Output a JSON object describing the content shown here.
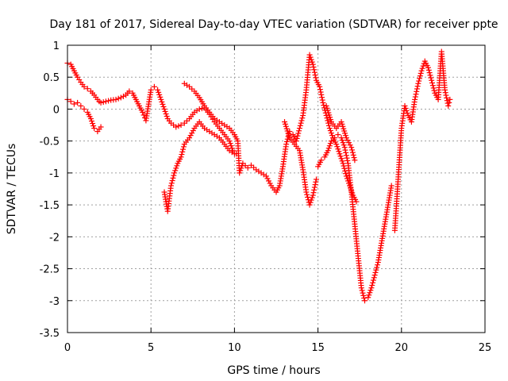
{
  "chart_data": {
    "type": "scatter",
    "title": "Day 181 of 2017, Sidereal Day-to-day VTEC variation (SDTVAR) for receiver ppte",
    "xlabel": "GPS time / hours",
    "ylabel": "SDTVAR / TECUs",
    "xlim": [
      0,
      25
    ],
    "ylim": [
      -3.5,
      1
    ],
    "xticks": [
      "0",
      "5",
      "10",
      "15",
      "20",
      "25"
    ],
    "yticks": [
      "-3.5",
      "-3",
      "-2.5",
      "-2",
      "-1.5",
      "-1",
      "-0.5",
      "0",
      "0.5",
      "1"
    ],
    "grid": true,
    "marker": "+",
    "color": "#ff0000",
    "series": [
      {
        "values": [
          [
            0.0,
            0.72
          ],
          [
            0.2,
            0.7
          ],
          [
            0.4,
            0.6
          ],
          [
            0.6,
            0.5
          ],
          [
            0.8,
            0.42
          ],
          [
            1.0,
            0.35
          ],
          [
            1.2,
            0.32
          ],
          [
            1.4,
            0.28
          ],
          [
            1.6,
            0.22
          ],
          [
            1.8,
            0.15
          ],
          [
            1.9,
            0.12
          ],
          [
            2.0,
            0.1
          ],
          [
            2.3,
            0.12
          ],
          [
            2.6,
            0.14
          ],
          [
            2.9,
            0.15
          ],
          [
            3.2,
            0.18
          ],
          [
            3.5,
            0.22
          ],
          [
            3.7,
            0.28
          ],
          [
            3.9,
            0.25
          ],
          [
            4.1,
            0.15
          ],
          [
            4.3,
            0.05
          ],
          [
            4.5,
            -0.05
          ],
          [
            4.7,
            -0.18
          ],
          [
            5.0,
            0.3
          ],
          [
            5.2,
            0.35
          ],
          [
            5.4,
            0.3
          ],
          [
            5.6,
            0.15
          ],
          [
            5.8,
            0.0
          ],
          [
            6.0,
            -0.15
          ],
          [
            6.2,
            -0.22
          ],
          [
            6.5,
            -0.28
          ],
          [
            6.8,
            -0.25
          ],
          [
            7.0,
            -0.22
          ],
          [
            7.3,
            -0.15
          ],
          [
            7.6,
            -0.05
          ],
          [
            7.9,
            0.0
          ],
          [
            8.2,
            0.02
          ],
          [
            8.5,
            -0.08
          ],
          [
            8.8,
            -0.2
          ],
          [
            9.1,
            -0.3
          ],
          [
            9.4,
            -0.4
          ],
          [
            9.7,
            -0.5
          ],
          [
            9.9,
            -0.65
          ],
          [
            10.1,
            -0.7
          ],
          [
            7.0,
            0.4
          ],
          [
            7.3,
            0.35
          ],
          [
            7.6,
            0.28
          ],
          [
            7.9,
            0.18
          ],
          [
            8.2,
            0.05
          ],
          [
            8.5,
            -0.05
          ],
          [
            8.8,
            -0.15
          ],
          [
            9.1,
            -0.2
          ],
          [
            9.4,
            -0.25
          ],
          [
            9.7,
            -0.3
          ],
          [
            10.0,
            -0.4
          ],
          [
            10.2,
            -0.5
          ],
          [
            10.3,
            -1.0
          ],
          [
            10.5,
            -0.85
          ],
          [
            10.8,
            -0.92
          ],
          [
            11.0,
            -0.88
          ],
          [
            11.3,
            -0.95
          ],
          [
            11.6,
            -1.0
          ],
          [
            11.9,
            -1.05
          ],
          [
            12.2,
            -1.2
          ],
          [
            12.5,
            -1.3
          ],
          [
            12.7,
            -1.2
          ],
          [
            12.9,
            -0.9
          ],
          [
            13.1,
            -0.55
          ],
          [
            13.3,
            -0.35
          ],
          [
            13.5,
            -0.4
          ],
          [
            13.7,
            -0.5
          ],
          [
            13.9,
            -0.3
          ],
          [
            14.1,
            -0.1
          ],
          [
            14.3,
            0.3
          ],
          [
            14.5,
            0.85
          ],
          [
            14.7,
            0.7
          ],
          [
            14.9,
            0.45
          ],
          [
            15.1,
            0.35
          ],
          [
            15.3,
            0.1
          ],
          [
            15.5,
            -0.1
          ],
          [
            15.7,
            -0.3
          ],
          [
            15.9,
            -0.45
          ],
          [
            16.1,
            -0.55
          ],
          [
            16.3,
            -0.7
          ],
          [
            16.5,
            -0.85
          ],
          [
            16.7,
            -1.05
          ],
          [
            16.9,
            -1.2
          ],
          [
            17.1,
            -1.35
          ],
          [
            17.3,
            -1.45
          ],
          [
            15.0,
            -0.9
          ],
          [
            15.2,
            -0.8
          ],
          [
            15.4,
            -0.75
          ],
          [
            15.6,
            -0.65
          ],
          [
            15.8,
            -0.5
          ],
          [
            16.0,
            -0.45
          ],
          [
            16.2,
            -0.4
          ],
          [
            16.4,
            -0.45
          ],
          [
            16.6,
            -0.6
          ],
          [
            16.8,
            -0.85
          ],
          [
            17.0,
            -1.3
          ],
          [
            17.2,
            -1.8
          ],
          [
            17.4,
            -2.3
          ],
          [
            17.6,
            -2.8
          ],
          [
            17.8,
            -3.0
          ],
          [
            18.0,
            -2.95
          ],
          [
            18.2,
            -2.8
          ],
          [
            18.4,
            -2.6
          ],
          [
            18.6,
            -2.4
          ],
          [
            18.8,
            -2.1
          ],
          [
            19.0,
            -1.8
          ],
          [
            19.2,
            -1.5
          ],
          [
            19.4,
            -1.2
          ],
          [
            13.0,
            -0.2
          ],
          [
            13.3,
            -0.45
          ],
          [
            13.6,
            -0.55
          ],
          [
            13.9,
            -0.65
          ],
          [
            14.1,
            -0.95
          ],
          [
            14.3,
            -1.3
          ],
          [
            14.5,
            -1.5
          ],
          [
            14.7,
            -1.35
          ],
          [
            14.9,
            -1.1
          ],
          [
            19.6,
            -1.9
          ],
          [
            19.8,
            -1.1
          ],
          [
            20.0,
            -0.3
          ],
          [
            20.2,
            0.05
          ],
          [
            20.4,
            -0.1
          ],
          [
            20.6,
            -0.2
          ],
          [
            20.8,
            0.15
          ],
          [
            21.0,
            0.4
          ],
          [
            21.2,
            0.6
          ],
          [
            21.4,
            0.75
          ],
          [
            21.6,
            0.65
          ],
          [
            21.8,
            0.45
          ],
          [
            22.0,
            0.25
          ],
          [
            22.2,
            0.15
          ],
          [
            22.4,
            0.9
          ],
          [
            22.6,
            0.3
          ],
          [
            22.8,
            0.05
          ],
          [
            22.9,
            0.15
          ]
        ]
      },
      {
        "values": [
          [
            0.0,
            0.15
          ],
          [
            0.2,
            0.12
          ],
          [
            0.4,
            0.08
          ],
          [
            0.6,
            0.1
          ],
          [
            0.8,
            0.05
          ],
          [
            1.0,
            0.0
          ],
          [
            1.2,
            -0.05
          ],
          [
            1.4,
            -0.15
          ],
          [
            1.6,
            -0.3
          ],
          [
            1.8,
            -0.35
          ],
          [
            2.0,
            -0.28
          ],
          [
            5.8,
            -1.3
          ],
          [
            6.0,
            -1.6
          ],
          [
            6.2,
            -1.2
          ],
          [
            6.4,
            -1.0
          ],
          [
            6.6,
            -0.85
          ],
          [
            6.8,
            -0.75
          ],
          [
            7.0,
            -0.55
          ],
          [
            7.3,
            -0.45
          ],
          [
            7.6,
            -0.3
          ],
          [
            7.9,
            -0.2
          ],
          [
            8.2,
            -0.3
          ],
          [
            8.5,
            -0.35
          ],
          [
            8.8,
            -0.4
          ],
          [
            9.1,
            -0.45
          ],
          [
            9.4,
            -0.55
          ],
          [
            9.7,
            -0.65
          ],
          [
            10.0,
            -0.7
          ],
          [
            15.5,
            0.05
          ],
          [
            15.8,
            -0.2
          ],
          [
            16.1,
            -0.3
          ],
          [
            16.4,
            -0.2
          ],
          [
            16.7,
            -0.45
          ],
          [
            17.0,
            -0.6
          ],
          [
            17.2,
            -0.8
          ]
        ]
      }
    ]
  }
}
